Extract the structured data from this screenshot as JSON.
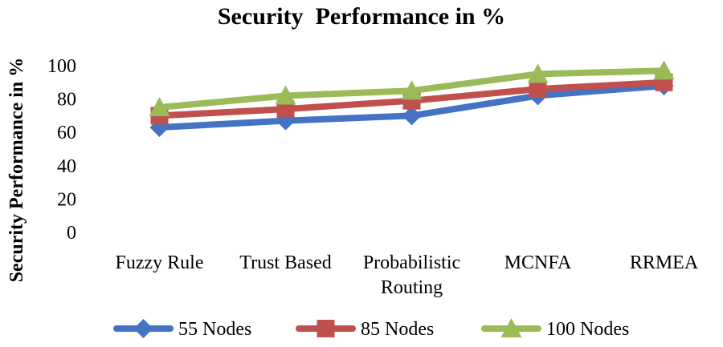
{
  "chart_data": {
    "type": "line",
    "title": "Security  Performance in %",
    "xlabel": "",
    "ylabel": "Security Performance in %",
    "categories": [
      "Fuzzy Rule",
      "Trust Based",
      "Probabilistic\nRouting",
      "MCNFA",
      "RRMEA"
    ],
    "yticks": [
      0,
      20,
      40,
      60,
      80,
      100
    ],
    "ylim": [
      0,
      100
    ],
    "grid": false,
    "legend_position": "bottom",
    "series": [
      {
        "name": "55 Nodes",
        "values": [
          63,
          67,
          70,
          82,
          88
        ],
        "color": "#4472C4",
        "marker": "diamond"
      },
      {
        "name": "85 Nodes",
        "values": [
          70,
          74,
          79,
          86,
          90
        ],
        "color": "#C0504D",
        "marker": "square"
      },
      {
        "name": "100 Nodes",
        "values": [
          75,
          82,
          85,
          95,
          97
        ],
        "color": "#9BBB59",
        "marker": "triangle"
      }
    ]
  }
}
